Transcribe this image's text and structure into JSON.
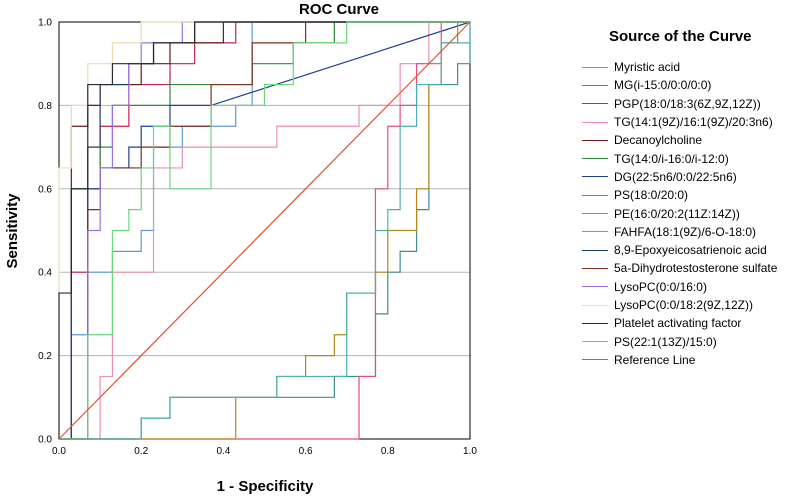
{
  "chart_data": {
    "type": "line",
    "title": "ROC Curve",
    "xlabel": "1 - Specificity",
    "ylabel": "Sensitivity",
    "xlim": [
      0,
      1
    ],
    "ylim": [
      0,
      1
    ],
    "x_ticks": [
      "0.0",
      "0.2",
      "0.4",
      "0.6",
      "0.8",
      "1.0"
    ],
    "y_ticks": [
      "0.0",
      "0.2",
      "0.4",
      "0.6",
      "0.8",
      "1.0"
    ],
    "grid": "horizontal",
    "legend_title": "Source of the Curve",
    "legend_position": "right",
    "series": [
      {
        "name": "Myristic acid",
        "color": "#5b9bd5",
        "points": [
          [
            0,
            0
          ],
          [
            0.03,
            0
          ],
          [
            0.03,
            0.25
          ],
          [
            0.07,
            0.25
          ],
          [
            0.07,
            0.4
          ],
          [
            0.13,
            0.4
          ],
          [
            0.13,
            0.45
          ],
          [
            0.2,
            0.45
          ],
          [
            0.2,
            0.5
          ],
          [
            0.23,
            0.5
          ],
          [
            0.23,
            0.7
          ],
          [
            0.3,
            0.7
          ],
          [
            0.3,
            0.75
          ],
          [
            0.43,
            0.75
          ],
          [
            0.43,
            0.8
          ],
          [
            0.47,
            0.8
          ],
          [
            0.47,
            1
          ],
          [
            1,
            1
          ]
        ]
      },
      {
        "name": "MG(i-15:0/0:0/0:0)",
        "color": "#3b8e8e",
        "points": [
          [
            0,
            0
          ],
          [
            0.2,
            0
          ],
          [
            0.2,
            0.05
          ],
          [
            0.27,
            0.05
          ],
          [
            0.27,
            0.1
          ],
          [
            0.67,
            0.1
          ],
          [
            0.67,
            0.15
          ],
          [
            0.77,
            0.15
          ],
          [
            0.77,
            0.3
          ],
          [
            0.8,
            0.3
          ],
          [
            0.8,
            0.4
          ],
          [
            0.83,
            0.4
          ],
          [
            0.83,
            0.45
          ],
          [
            0.87,
            0.45
          ],
          [
            0.87,
            0.55
          ],
          [
            0.9,
            0.55
          ],
          [
            0.9,
            0.85
          ],
          [
            0.97,
            0.85
          ],
          [
            0.97,
            0.9
          ],
          [
            1,
            0.9
          ],
          [
            1,
            1
          ]
        ]
      },
      {
        "name": "PGP(18:0/18:3(6Z,9Z,12Z))",
        "color": "#c0244f",
        "points": [
          [
            0,
            0
          ],
          [
            0.03,
            0
          ],
          [
            0.03,
            0.4
          ],
          [
            0.07,
            0.4
          ],
          [
            0.07,
            0.6
          ],
          [
            0.1,
            0.6
          ],
          [
            0.1,
            0.75
          ],
          [
            0.17,
            0.75
          ],
          [
            0.17,
            0.85
          ],
          [
            0.27,
            0.85
          ],
          [
            0.27,
            0.9
          ],
          [
            0.33,
            0.9
          ],
          [
            0.33,
            0.95
          ],
          [
            0.43,
            0.95
          ],
          [
            0.43,
            1
          ],
          [
            1,
            1
          ]
        ]
      },
      {
        "name": "TG(14:1(9Z)/16:1(9Z)/20:3n6)",
        "color": "#f08cb5",
        "points": [
          [
            0,
            0
          ],
          [
            0.1,
            0
          ],
          [
            0.1,
            0.15
          ],
          [
            0.13,
            0.15
          ],
          [
            0.13,
            0.4
          ],
          [
            0.23,
            0.4
          ],
          [
            0.23,
            0.65
          ],
          [
            0.3,
            0.65
          ],
          [
            0.3,
            0.7
          ],
          [
            0.53,
            0.7
          ],
          [
            0.53,
            0.75
          ],
          [
            0.73,
            0.75
          ],
          [
            0.73,
            0.8
          ],
          [
            0.83,
            0.8
          ],
          [
            0.83,
            0.9
          ],
          [
            0.9,
            0.9
          ],
          [
            0.9,
            1
          ],
          [
            1,
            1
          ]
        ]
      },
      {
        "name": "Decanoylcholine",
        "color": "#6b1a1a",
        "points": [
          [
            0,
            0
          ],
          [
            0.03,
            0
          ],
          [
            0.03,
            0.75
          ],
          [
            0.07,
            0.75
          ],
          [
            0.07,
            0.8
          ],
          [
            0.1,
            0.8
          ],
          [
            0.1,
            0.85
          ],
          [
            0.2,
            0.85
          ],
          [
            0.2,
            0.9
          ],
          [
            0.27,
            0.9
          ],
          [
            0.27,
            0.95
          ],
          [
            0.4,
            0.95
          ],
          [
            0.4,
            1
          ],
          [
            1,
            1
          ]
        ]
      },
      {
        "name": "TG(14:0/i-16:0/i-12:0)",
        "color": "#2e8b3a",
        "points": [
          [
            0,
            0
          ],
          [
            0.03,
            0
          ],
          [
            0.03,
            0.6
          ],
          [
            0.1,
            0.6
          ],
          [
            0.1,
            0.7
          ],
          [
            0.13,
            0.7
          ],
          [
            0.13,
            0.8
          ],
          [
            0.27,
            0.8
          ],
          [
            0.27,
            0.85
          ],
          [
            0.47,
            0.85
          ],
          [
            0.47,
            0.9
          ],
          [
            0.57,
            0.9
          ],
          [
            0.57,
            0.95
          ],
          [
            0.67,
            0.95
          ],
          [
            0.67,
            1
          ],
          [
            1,
            1
          ]
        ]
      },
      {
        "name": "DG(22:5n6/0:0/22:5n6)",
        "color": "#1f3f95",
        "points": [
          [
            0,
            0
          ],
          [
            0.03,
            0
          ],
          [
            0.03,
            0.6
          ],
          [
            0.1,
            0.6
          ],
          [
            0.1,
            0.65
          ],
          [
            0.17,
            0.65
          ],
          [
            0.17,
            0.7
          ],
          [
            0.2,
            0.7
          ],
          [
            0.2,
            0.75
          ],
          [
            0.27,
            0.75
          ],
          [
            0.27,
            0.8
          ],
          [
            0.37,
            0.8
          ],
          [
            1,
            1
          ]
        ]
      },
      {
        "name": "PS(18:0/20:0)",
        "color": "#e84a86",
        "points": [
          [
            0,
            0
          ],
          [
            0.73,
            0
          ],
          [
            0.73,
            0.15
          ],
          [
            0.77,
            0.15
          ],
          [
            0.77,
            0.6
          ],
          [
            0.8,
            0.6
          ],
          [
            0.8,
            0.75
          ],
          [
            0.83,
            0.75
          ],
          [
            0.83,
            0.8
          ],
          [
            0.87,
            0.8
          ],
          [
            0.87,
            0.9
          ],
          [
            0.93,
            0.9
          ],
          [
            0.93,
            1
          ],
          [
            1,
            1
          ]
        ]
      },
      {
        "name": "PE(16:0/20:2(11Z:14Z))",
        "color": "#b08a1a",
        "points": [
          [
            0,
            0
          ],
          [
            0.43,
            0
          ],
          [
            0.43,
            0.1
          ],
          [
            0.53,
            0.1
          ],
          [
            0.53,
            0.15
          ],
          [
            0.6,
            0.15
          ],
          [
            0.6,
            0.2
          ],
          [
            0.67,
            0.2
          ],
          [
            0.67,
            0.25
          ],
          [
            0.7,
            0.25
          ],
          [
            0.7,
            0.35
          ],
          [
            0.77,
            0.35
          ],
          [
            0.77,
            0.4
          ],
          [
            0.8,
            0.4
          ],
          [
            0.8,
            0.5
          ],
          [
            0.87,
            0.5
          ],
          [
            0.87,
            0.6
          ],
          [
            0.9,
            0.6
          ],
          [
            0.9,
            0.85
          ],
          [
            0.93,
            0.85
          ],
          [
            0.93,
            0.95
          ],
          [
            0.97,
            0.95
          ],
          [
            0.97,
            1
          ],
          [
            1,
            1
          ]
        ]
      },
      {
        "name": "FAHFA(18:1(9Z)/6-O-18:0)",
        "color": "#4bb0b0",
        "points": [
          [
            0,
            0
          ],
          [
            0.2,
            0
          ],
          [
            0.2,
            0.05
          ],
          [
            0.27,
            0.05
          ],
          [
            0.27,
            0.1
          ],
          [
            0.53,
            0.1
          ],
          [
            0.53,
            0.15
          ],
          [
            0.7,
            0.15
          ],
          [
            0.7,
            0.35
          ],
          [
            0.77,
            0.35
          ],
          [
            0.77,
            0.5
          ],
          [
            0.8,
            0.5
          ],
          [
            0.8,
            0.55
          ],
          [
            0.83,
            0.55
          ],
          [
            0.83,
            0.75
          ],
          [
            0.87,
            0.75
          ],
          [
            0.87,
            0.85
          ],
          [
            0.93,
            0.85
          ],
          [
            0.93,
            0.95
          ],
          [
            1,
            0.95
          ],
          [
            1,
            1
          ]
        ]
      },
      {
        "name": "8,9-Epoxyeicosatrienoic acid",
        "color": "#1b3a5c",
        "points": [
          [
            0,
            0
          ],
          [
            0.07,
            0
          ],
          [
            0.07,
            0.7
          ],
          [
            0.1,
            0.7
          ],
          [
            0.1,
            0.85
          ],
          [
            0.17,
            0.85
          ],
          [
            0.17,
            0.9
          ],
          [
            0.23,
            0.9
          ],
          [
            0.23,
            0.95
          ],
          [
            0.33,
            0.95
          ],
          [
            0.33,
            1
          ],
          [
            1,
            1
          ]
        ]
      },
      {
        "name": "5a-Dihydrotestosterone sulfate",
        "color": "#7a2f1e",
        "points": [
          [
            0,
            0
          ],
          [
            0.07,
            0
          ],
          [
            0.07,
            0.55
          ],
          [
            0.1,
            0.55
          ],
          [
            0.1,
            0.65
          ],
          [
            0.2,
            0.65
          ],
          [
            0.2,
            0.7
          ],
          [
            0.27,
            0.7
          ],
          [
            0.27,
            0.75
          ],
          [
            0.37,
            0.75
          ],
          [
            0.37,
            0.85
          ],
          [
            0.47,
            0.85
          ],
          [
            0.47,
            0.95
          ],
          [
            0.6,
            0.95
          ],
          [
            0.6,
            1
          ],
          [
            1,
            1
          ]
        ]
      },
      {
        "name": "LysoPC(0:0/16:0)",
        "color": "#9b6ee8",
        "points": [
          [
            0,
            0
          ],
          [
            0.07,
            0
          ],
          [
            0.07,
            0.5
          ],
          [
            0.1,
            0.5
          ],
          [
            0.1,
            0.65
          ],
          [
            0.13,
            0.65
          ],
          [
            0.13,
            0.8
          ],
          [
            0.17,
            0.8
          ],
          [
            0.17,
            0.9
          ],
          [
            0.2,
            0.9
          ],
          [
            0.2,
            0.95
          ],
          [
            0.3,
            0.95
          ],
          [
            0.3,
            1
          ],
          [
            1,
            1
          ]
        ]
      },
      {
        "name": "LysoPC(0:0/18:2(9Z,12Z))",
        "color": "#e8dcb0",
        "points": [
          [
            0,
            0
          ],
          [
            0,
            0.65
          ],
          [
            0.03,
            0.65
          ],
          [
            0.03,
            0.8
          ],
          [
            0.07,
            0.8
          ],
          [
            0.07,
            0.9
          ],
          [
            0.13,
            0.9
          ],
          [
            0.13,
            0.95
          ],
          [
            0.2,
            0.95
          ],
          [
            0.2,
            1
          ],
          [
            1,
            1
          ]
        ]
      },
      {
        "name": "Platelet activating factor",
        "color": "#2b2b2b",
        "points": [
          [
            0,
            0
          ],
          [
            0,
            0.35
          ],
          [
            0.03,
            0.35
          ],
          [
            0.03,
            0.6
          ],
          [
            0.07,
            0.6
          ],
          [
            0.07,
            0.85
          ],
          [
            0.13,
            0.85
          ],
          [
            0.13,
            0.9
          ],
          [
            0.23,
            0.9
          ],
          [
            0.23,
            0.95
          ],
          [
            0.33,
            0.95
          ],
          [
            0.33,
            1
          ],
          [
            1,
            1
          ]
        ]
      },
      {
        "name": "PS(22:1(13Z)/15:0)",
        "color": "#6bd67e",
        "points": [
          [
            0,
            0
          ],
          [
            0.07,
            0
          ],
          [
            0.07,
            0.25
          ],
          [
            0.13,
            0.25
          ],
          [
            0.13,
            0.5
          ],
          [
            0.17,
            0.5
          ],
          [
            0.17,
            0.55
          ],
          [
            0.2,
            0.55
          ],
          [
            0.2,
            0.65
          ],
          [
            0.23,
            0.65
          ],
          [
            0.23,
            0.75
          ],
          [
            0.27,
            0.75
          ],
          [
            0.27,
            0.6
          ],
          [
            0.37,
            0.6
          ],
          [
            0.37,
            0.8
          ],
          [
            0.5,
            0.8
          ],
          [
            0.5,
            0.85
          ],
          [
            0.57,
            0.85
          ],
          [
            0.57,
            0.95
          ],
          [
            0.7,
            0.95
          ],
          [
            0.7,
            1
          ],
          [
            1,
            1
          ]
        ]
      },
      {
        "name": "Reference Line",
        "color": "#e0522a",
        "points": [
          [
            0,
            0
          ],
          [
            1,
            1
          ]
        ]
      }
    ]
  }
}
